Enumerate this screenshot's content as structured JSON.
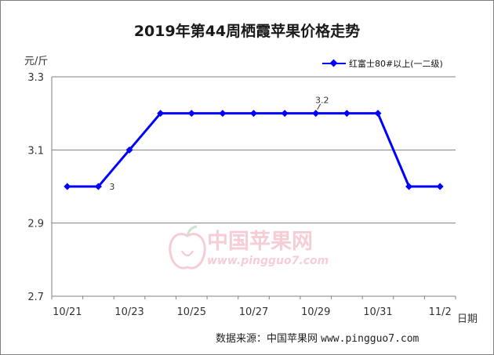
{
  "chart_data": {
    "type": "line",
    "title": "2019年第44周栖霞苹果价格走势",
    "ylabel": "元/斤",
    "xlabel": "日期",
    "categories": [
      "10/21",
      "10/22",
      "10/23",
      "10/24",
      "10/25",
      "10/26",
      "10/27",
      "10/28",
      "10/29",
      "10/30",
      "10/31",
      "11/1",
      "11/2"
    ],
    "x_tick_labels": [
      "10/21",
      "10/23",
      "10/25",
      "10/27",
      "10/29",
      "10/31",
      "11/2"
    ],
    "y_ticks": [
      "2.7",
      "2.9",
      "3.1",
      "3.3"
    ],
    "ylim": [
      2.7,
      3.3
    ],
    "grid": "horizontal",
    "legend": "top-right",
    "series": [
      {
        "name": "红富士80#以上(一二级)",
        "values": [
          3.0,
          3.0,
          3.1,
          3.2,
          3.2,
          3.2,
          3.2,
          3.2,
          3.2,
          3.2,
          3.2,
          3.0,
          3.0
        ],
        "color": "#0000ff"
      }
    ],
    "annotations": [
      {
        "index": 1,
        "text": "3"
      },
      {
        "index": 8,
        "text": "3.2"
      }
    ]
  },
  "watermark": {
    "name": "中国苹果网",
    "url": "www.pingguo7.com",
    "icon": "apple-logo-icon"
  },
  "source": {
    "label": "数据来源：中国苹果网",
    "url": "www.pingguo7.com"
  }
}
